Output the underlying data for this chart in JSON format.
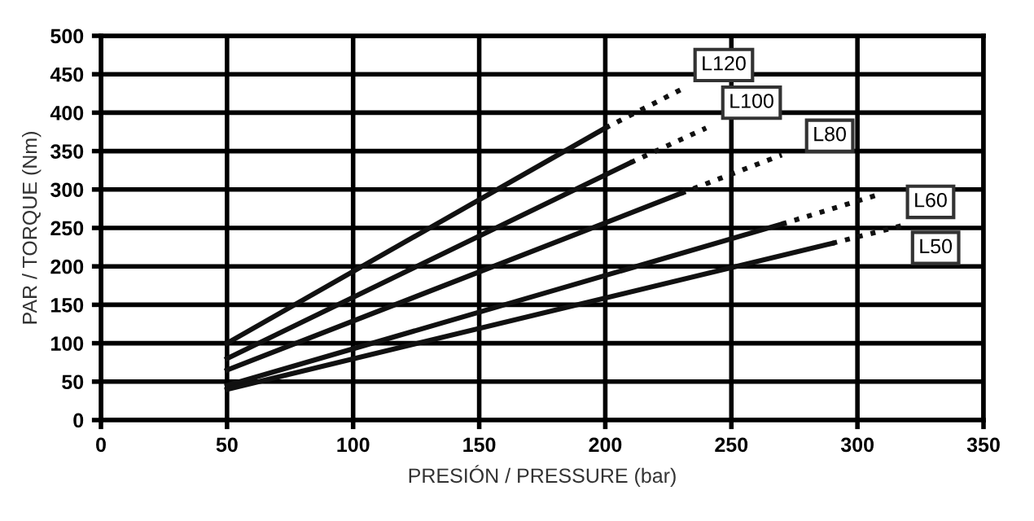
{
  "chart_data": {
    "type": "line",
    "xlabel": "PRESIÓN / PRESSURE (bar)",
    "ylabel": "PAR / TORQUE (Nm)",
    "xlim": [
      0,
      350
    ],
    "ylim": [
      0,
      500
    ],
    "xticks": [
      0,
      50,
      100,
      150,
      200,
      250,
      300,
      350
    ],
    "yticks": [
      0,
      50,
      100,
      150,
      200,
      250,
      300,
      350,
      400,
      450,
      500
    ],
    "grid": true,
    "marker": "none",
    "series": [
      {
        "color": "#111111",
        "x": [
          50,
          200
        ],
        "values": [
          100,
          380
        ],
        "line_style": "solid"
      },
      {
        "color": "#111111",
        "x": [
          200,
          230
        ],
        "values": [
          380,
          430
        ],
        "line_style": "dotted"
      },
      {
        "color": "#111111",
        "x": [
          50,
          210
        ],
        "values": [
          80,
          335
        ],
        "line_style": "solid"
      },
      {
        "color": "#111111",
        "x": [
          210,
          240
        ],
        "values": [
          335,
          380
        ],
        "line_style": "dotted"
      },
      {
        "color": "#111111",
        "x": [
          50,
          230
        ],
        "values": [
          65,
          295
        ],
        "line_style": "solid"
      },
      {
        "color": "#111111",
        "x": [
          230,
          270
        ],
        "values": [
          295,
          345
        ],
        "line_style": "dotted"
      },
      {
        "color": "#111111",
        "x": [
          50,
          270
        ],
        "values": [
          45,
          255
        ],
        "line_style": "solid"
      },
      {
        "color": "#111111",
        "x": [
          270,
          310
        ],
        "values": [
          255,
          295
        ],
        "line_style": "dotted"
      },
      {
        "color": "#111111",
        "x": [
          50,
          290
        ],
        "values": [
          40,
          230
        ],
        "line_style": "solid"
      },
      {
        "color": "#111111",
        "x": [
          290,
          320
        ],
        "values": [
          230,
          255
        ],
        "line_style": "dotted"
      }
    ],
    "annotations": [
      {
        "text": "L120",
        "x": 247,
        "y": 462
      },
      {
        "text": "L100",
        "x": 258,
        "y": 413
      },
      {
        "text": "L80",
        "x": 289,
        "y": 370
      },
      {
        "text": "L60",
        "x": 329,
        "y": 284
      },
      {
        "text": "L50",
        "x": 331,
        "y": 224
      }
    ]
  }
}
